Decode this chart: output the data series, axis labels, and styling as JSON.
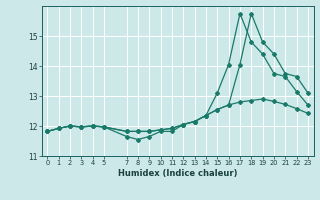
{
  "xlabel": "Humidex (Indice chaleur)",
  "xlim": [
    -0.5,
    23.5
  ],
  "ylim": [
    11,
    16
  ],
  "yticks": [
    11,
    12,
    13,
    14,
    15
  ],
  "xticks": [
    0,
    1,
    2,
    3,
    4,
    5,
    7,
    8,
    9,
    10,
    11,
    12,
    13,
    14,
    15,
    16,
    17,
    18,
    19,
    20,
    21,
    22,
    23
  ],
  "xtick_labels": [
    "0",
    "1",
    "2",
    "3",
    "4",
    "5",
    "7",
    "8",
    "9",
    "10",
    "11",
    "12",
    "13",
    "14",
    "15",
    "16",
    "17",
    "18",
    "19",
    "20",
    "21",
    "22",
    "23"
  ],
  "bg_color": "#cce8e8",
  "line_color": "#1a7a6a",
  "grid_color": "#ffffff",
  "series1_x": [
    0,
    1,
    2,
    3,
    4,
    5,
    7,
    8,
    9,
    10,
    11,
    12,
    13,
    14,
    15,
    16,
    17,
    18,
    19,
    20,
    21,
    22,
    23
  ],
  "series1_y": [
    11.82,
    11.92,
    12.0,
    11.97,
    12.0,
    11.97,
    11.65,
    11.55,
    11.65,
    11.82,
    11.82,
    12.05,
    12.15,
    12.35,
    13.1,
    14.05,
    15.75,
    14.8,
    14.4,
    13.75,
    13.65,
    13.15,
    12.7
  ],
  "series2_x": [
    0,
    1,
    2,
    3,
    4,
    5,
    7,
    8,
    9,
    10,
    11,
    12,
    13,
    14,
    15,
    16,
    17,
    18,
    19,
    20,
    21,
    22,
    23
  ],
  "series2_y": [
    11.82,
    11.92,
    12.0,
    11.97,
    12.0,
    11.97,
    11.82,
    11.82,
    11.82,
    11.87,
    11.92,
    12.05,
    12.15,
    12.35,
    12.55,
    12.7,
    12.8,
    12.85,
    12.9,
    12.82,
    12.72,
    12.58,
    12.42
  ],
  "series3_x": [
    0,
    1,
    2,
    3,
    4,
    5,
    7,
    8,
    9,
    10,
    11,
    12,
    13,
    14,
    15,
    16,
    17,
    18,
    19,
    20,
    21,
    22,
    23
  ],
  "series3_y": [
    11.82,
    11.92,
    12.0,
    11.97,
    12.0,
    11.97,
    11.82,
    11.82,
    11.82,
    11.87,
    11.92,
    12.05,
    12.15,
    12.35,
    12.55,
    12.7,
    14.05,
    15.75,
    14.8,
    14.4,
    13.75,
    13.65,
    13.1
  ]
}
